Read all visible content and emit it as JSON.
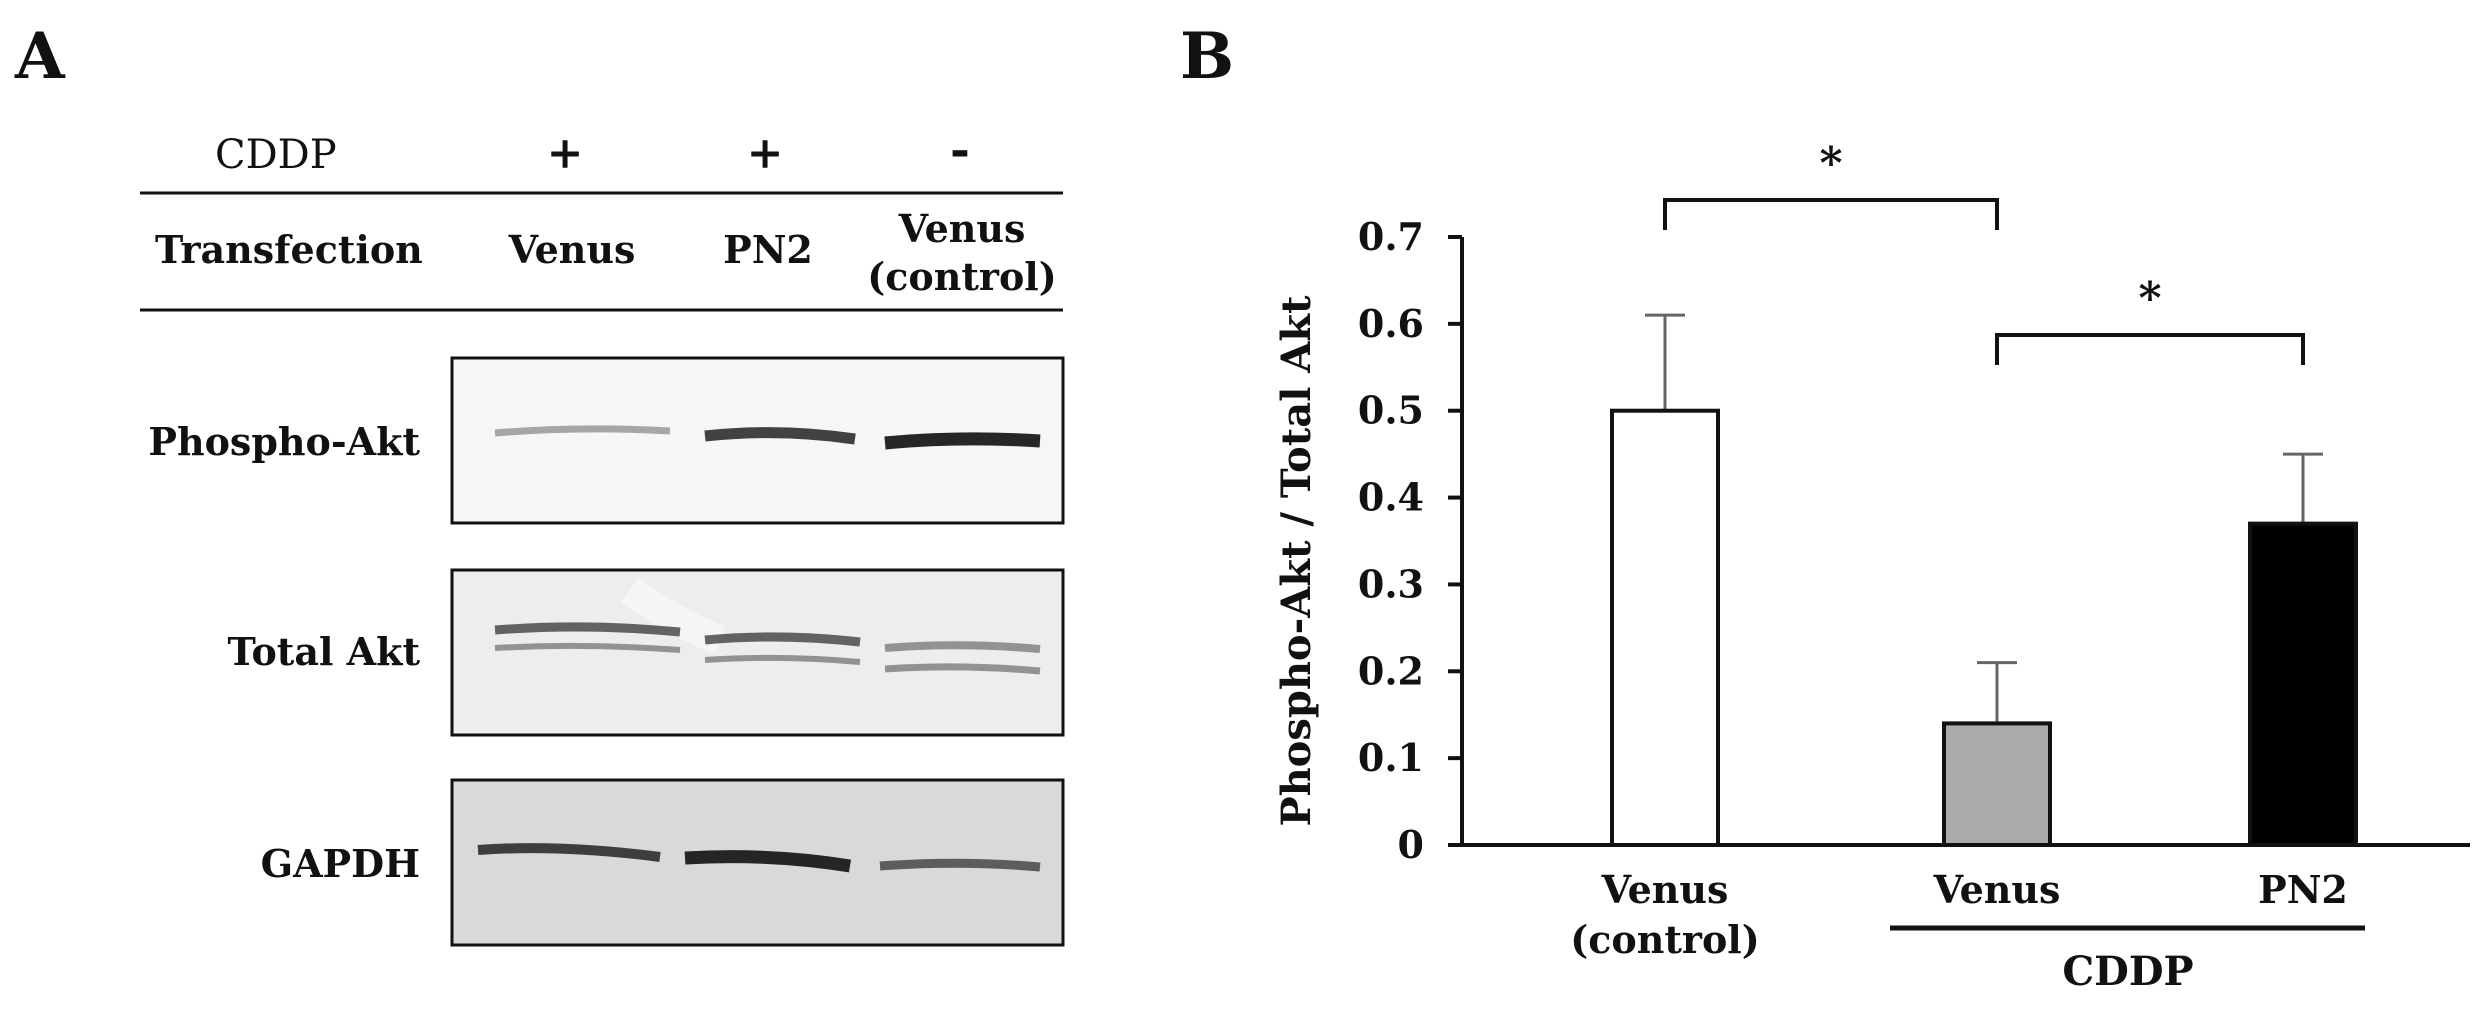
{
  "panel_a": {
    "letter": "A",
    "cddp_row": {
      "label": "CDDP",
      "values": [
        "+",
        "+",
        "-"
      ]
    },
    "transfection_row": {
      "label": "Transfection",
      "lanes": [
        "Venus",
        "PN2",
        "Venus",
        "(control)"
      ]
    },
    "blots": [
      {
        "label": "Phospho-Akt",
        "background": "#f6f6f6"
      },
      {
        "label": "Total Akt",
        "background": "#ededed"
      },
      {
        "label": "GAPDH",
        "background": "#d9d9d9"
      }
    ]
  },
  "panel_b": {
    "letter": "B",
    "ylabel": "Phospho-Akt / Total Akt",
    "categories": [
      "Venus",
      "(control)",
      "Venus",
      "PN2"
    ],
    "group_label": "CDDP",
    "significance": [
      "*",
      "*"
    ]
  },
  "chart_data": {
    "type": "bar",
    "title": "",
    "xlabel": "",
    "ylabel": "Phospho-Akt / Total Akt",
    "categories": [
      "Venus (control)",
      "Venus",
      "PN2"
    ],
    "values": [
      0.5,
      0.14,
      0.37
    ],
    "error_upper": [
      0.61,
      0.21,
      0.45
    ],
    "colors": [
      "#ffffff",
      "#aaaaaa",
      "#000000"
    ],
    "ylim": [
      0,
      0.7
    ],
    "yticks": [
      0,
      0.1,
      0.2,
      0.3,
      0.4,
      0.5,
      0.6,
      0.7
    ],
    "ytick_labels": [
      "0",
      "0.1",
      "0.2",
      "0.3",
      "0.4",
      "0.5",
      "0.6",
      "0.7"
    ],
    "grid": false,
    "group_bracket": {
      "label": "CDDP",
      "categories": [
        "Venus",
        "PN2"
      ]
    },
    "significance": [
      {
        "between": [
          "Venus (control)",
          "Venus"
        ],
        "label": "*"
      },
      {
        "between": [
          "Venus",
          "PN2"
        ],
        "label": "*"
      }
    ]
  }
}
